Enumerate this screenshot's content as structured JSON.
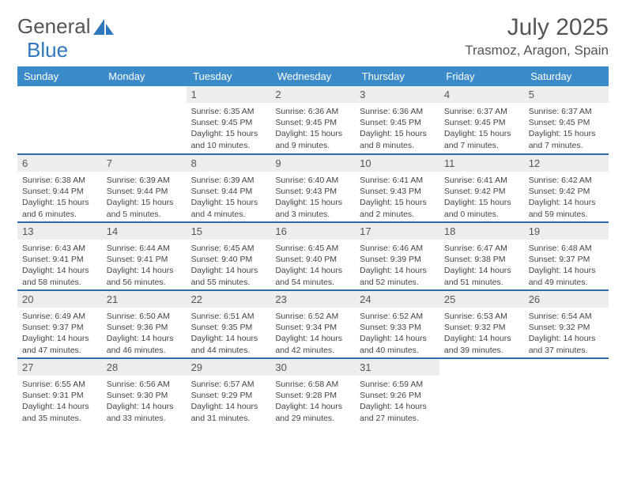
{
  "logo": {
    "text_a": "General",
    "text_b": "Blue"
  },
  "title": "July 2025",
  "location": "Trasmoz, Aragon, Spain",
  "colors": {
    "header_bg": "#3b8bc9",
    "row_border": "#2f6fa8",
    "daynum_bg": "#ededed",
    "text": "#444",
    "title_text": "#555"
  },
  "weekdays": [
    "Sunday",
    "Monday",
    "Tuesday",
    "Wednesday",
    "Thursday",
    "Friday",
    "Saturday"
  ],
  "weeks": [
    [
      {
        "empty": true
      },
      {
        "empty": true
      },
      {
        "num": "1",
        "sunrise": "6:35 AM",
        "sunset": "9:45 PM",
        "daylight": "15 hours and 10 minutes."
      },
      {
        "num": "2",
        "sunrise": "6:36 AM",
        "sunset": "9:45 PM",
        "daylight": "15 hours and 9 minutes."
      },
      {
        "num": "3",
        "sunrise": "6:36 AM",
        "sunset": "9:45 PM",
        "daylight": "15 hours and 8 minutes."
      },
      {
        "num": "4",
        "sunrise": "6:37 AM",
        "sunset": "9:45 PM",
        "daylight": "15 hours and 7 minutes."
      },
      {
        "num": "5",
        "sunrise": "6:37 AM",
        "sunset": "9:45 PM",
        "daylight": "15 hours and 7 minutes."
      }
    ],
    [
      {
        "num": "6",
        "sunrise": "6:38 AM",
        "sunset": "9:44 PM",
        "daylight": "15 hours and 6 minutes."
      },
      {
        "num": "7",
        "sunrise": "6:39 AM",
        "sunset": "9:44 PM",
        "daylight": "15 hours and 5 minutes."
      },
      {
        "num": "8",
        "sunrise": "6:39 AM",
        "sunset": "9:44 PM",
        "daylight": "15 hours and 4 minutes."
      },
      {
        "num": "9",
        "sunrise": "6:40 AM",
        "sunset": "9:43 PM",
        "daylight": "15 hours and 3 minutes."
      },
      {
        "num": "10",
        "sunrise": "6:41 AM",
        "sunset": "9:43 PM",
        "daylight": "15 hours and 2 minutes."
      },
      {
        "num": "11",
        "sunrise": "6:41 AM",
        "sunset": "9:42 PM",
        "daylight": "15 hours and 0 minutes."
      },
      {
        "num": "12",
        "sunrise": "6:42 AM",
        "sunset": "9:42 PM",
        "daylight": "14 hours and 59 minutes."
      }
    ],
    [
      {
        "num": "13",
        "sunrise": "6:43 AM",
        "sunset": "9:41 PM",
        "daylight": "14 hours and 58 minutes."
      },
      {
        "num": "14",
        "sunrise": "6:44 AM",
        "sunset": "9:41 PM",
        "daylight": "14 hours and 56 minutes."
      },
      {
        "num": "15",
        "sunrise": "6:45 AM",
        "sunset": "9:40 PM",
        "daylight": "14 hours and 55 minutes."
      },
      {
        "num": "16",
        "sunrise": "6:45 AM",
        "sunset": "9:40 PM",
        "daylight": "14 hours and 54 minutes."
      },
      {
        "num": "17",
        "sunrise": "6:46 AM",
        "sunset": "9:39 PM",
        "daylight": "14 hours and 52 minutes."
      },
      {
        "num": "18",
        "sunrise": "6:47 AM",
        "sunset": "9:38 PM",
        "daylight": "14 hours and 51 minutes."
      },
      {
        "num": "19",
        "sunrise": "6:48 AM",
        "sunset": "9:37 PM",
        "daylight": "14 hours and 49 minutes."
      }
    ],
    [
      {
        "num": "20",
        "sunrise": "6:49 AM",
        "sunset": "9:37 PM",
        "daylight": "14 hours and 47 minutes."
      },
      {
        "num": "21",
        "sunrise": "6:50 AM",
        "sunset": "9:36 PM",
        "daylight": "14 hours and 46 minutes."
      },
      {
        "num": "22",
        "sunrise": "6:51 AM",
        "sunset": "9:35 PM",
        "daylight": "14 hours and 44 minutes."
      },
      {
        "num": "23",
        "sunrise": "6:52 AM",
        "sunset": "9:34 PM",
        "daylight": "14 hours and 42 minutes."
      },
      {
        "num": "24",
        "sunrise": "6:52 AM",
        "sunset": "9:33 PM",
        "daylight": "14 hours and 40 minutes."
      },
      {
        "num": "25",
        "sunrise": "6:53 AM",
        "sunset": "9:32 PM",
        "daylight": "14 hours and 39 minutes."
      },
      {
        "num": "26",
        "sunrise": "6:54 AM",
        "sunset": "9:32 PM",
        "daylight": "14 hours and 37 minutes."
      }
    ],
    [
      {
        "num": "27",
        "sunrise": "6:55 AM",
        "sunset": "9:31 PM",
        "daylight": "14 hours and 35 minutes."
      },
      {
        "num": "28",
        "sunrise": "6:56 AM",
        "sunset": "9:30 PM",
        "daylight": "14 hours and 33 minutes."
      },
      {
        "num": "29",
        "sunrise": "6:57 AM",
        "sunset": "9:29 PM",
        "daylight": "14 hours and 31 minutes."
      },
      {
        "num": "30",
        "sunrise": "6:58 AM",
        "sunset": "9:28 PM",
        "daylight": "14 hours and 29 minutes."
      },
      {
        "num": "31",
        "sunrise": "6:59 AM",
        "sunset": "9:26 PM",
        "daylight": "14 hours and 27 minutes."
      },
      {
        "empty": true
      },
      {
        "empty": true
      }
    ]
  ],
  "labels": {
    "sunrise": "Sunrise:",
    "sunset": "Sunset:",
    "daylight": "Daylight:"
  }
}
